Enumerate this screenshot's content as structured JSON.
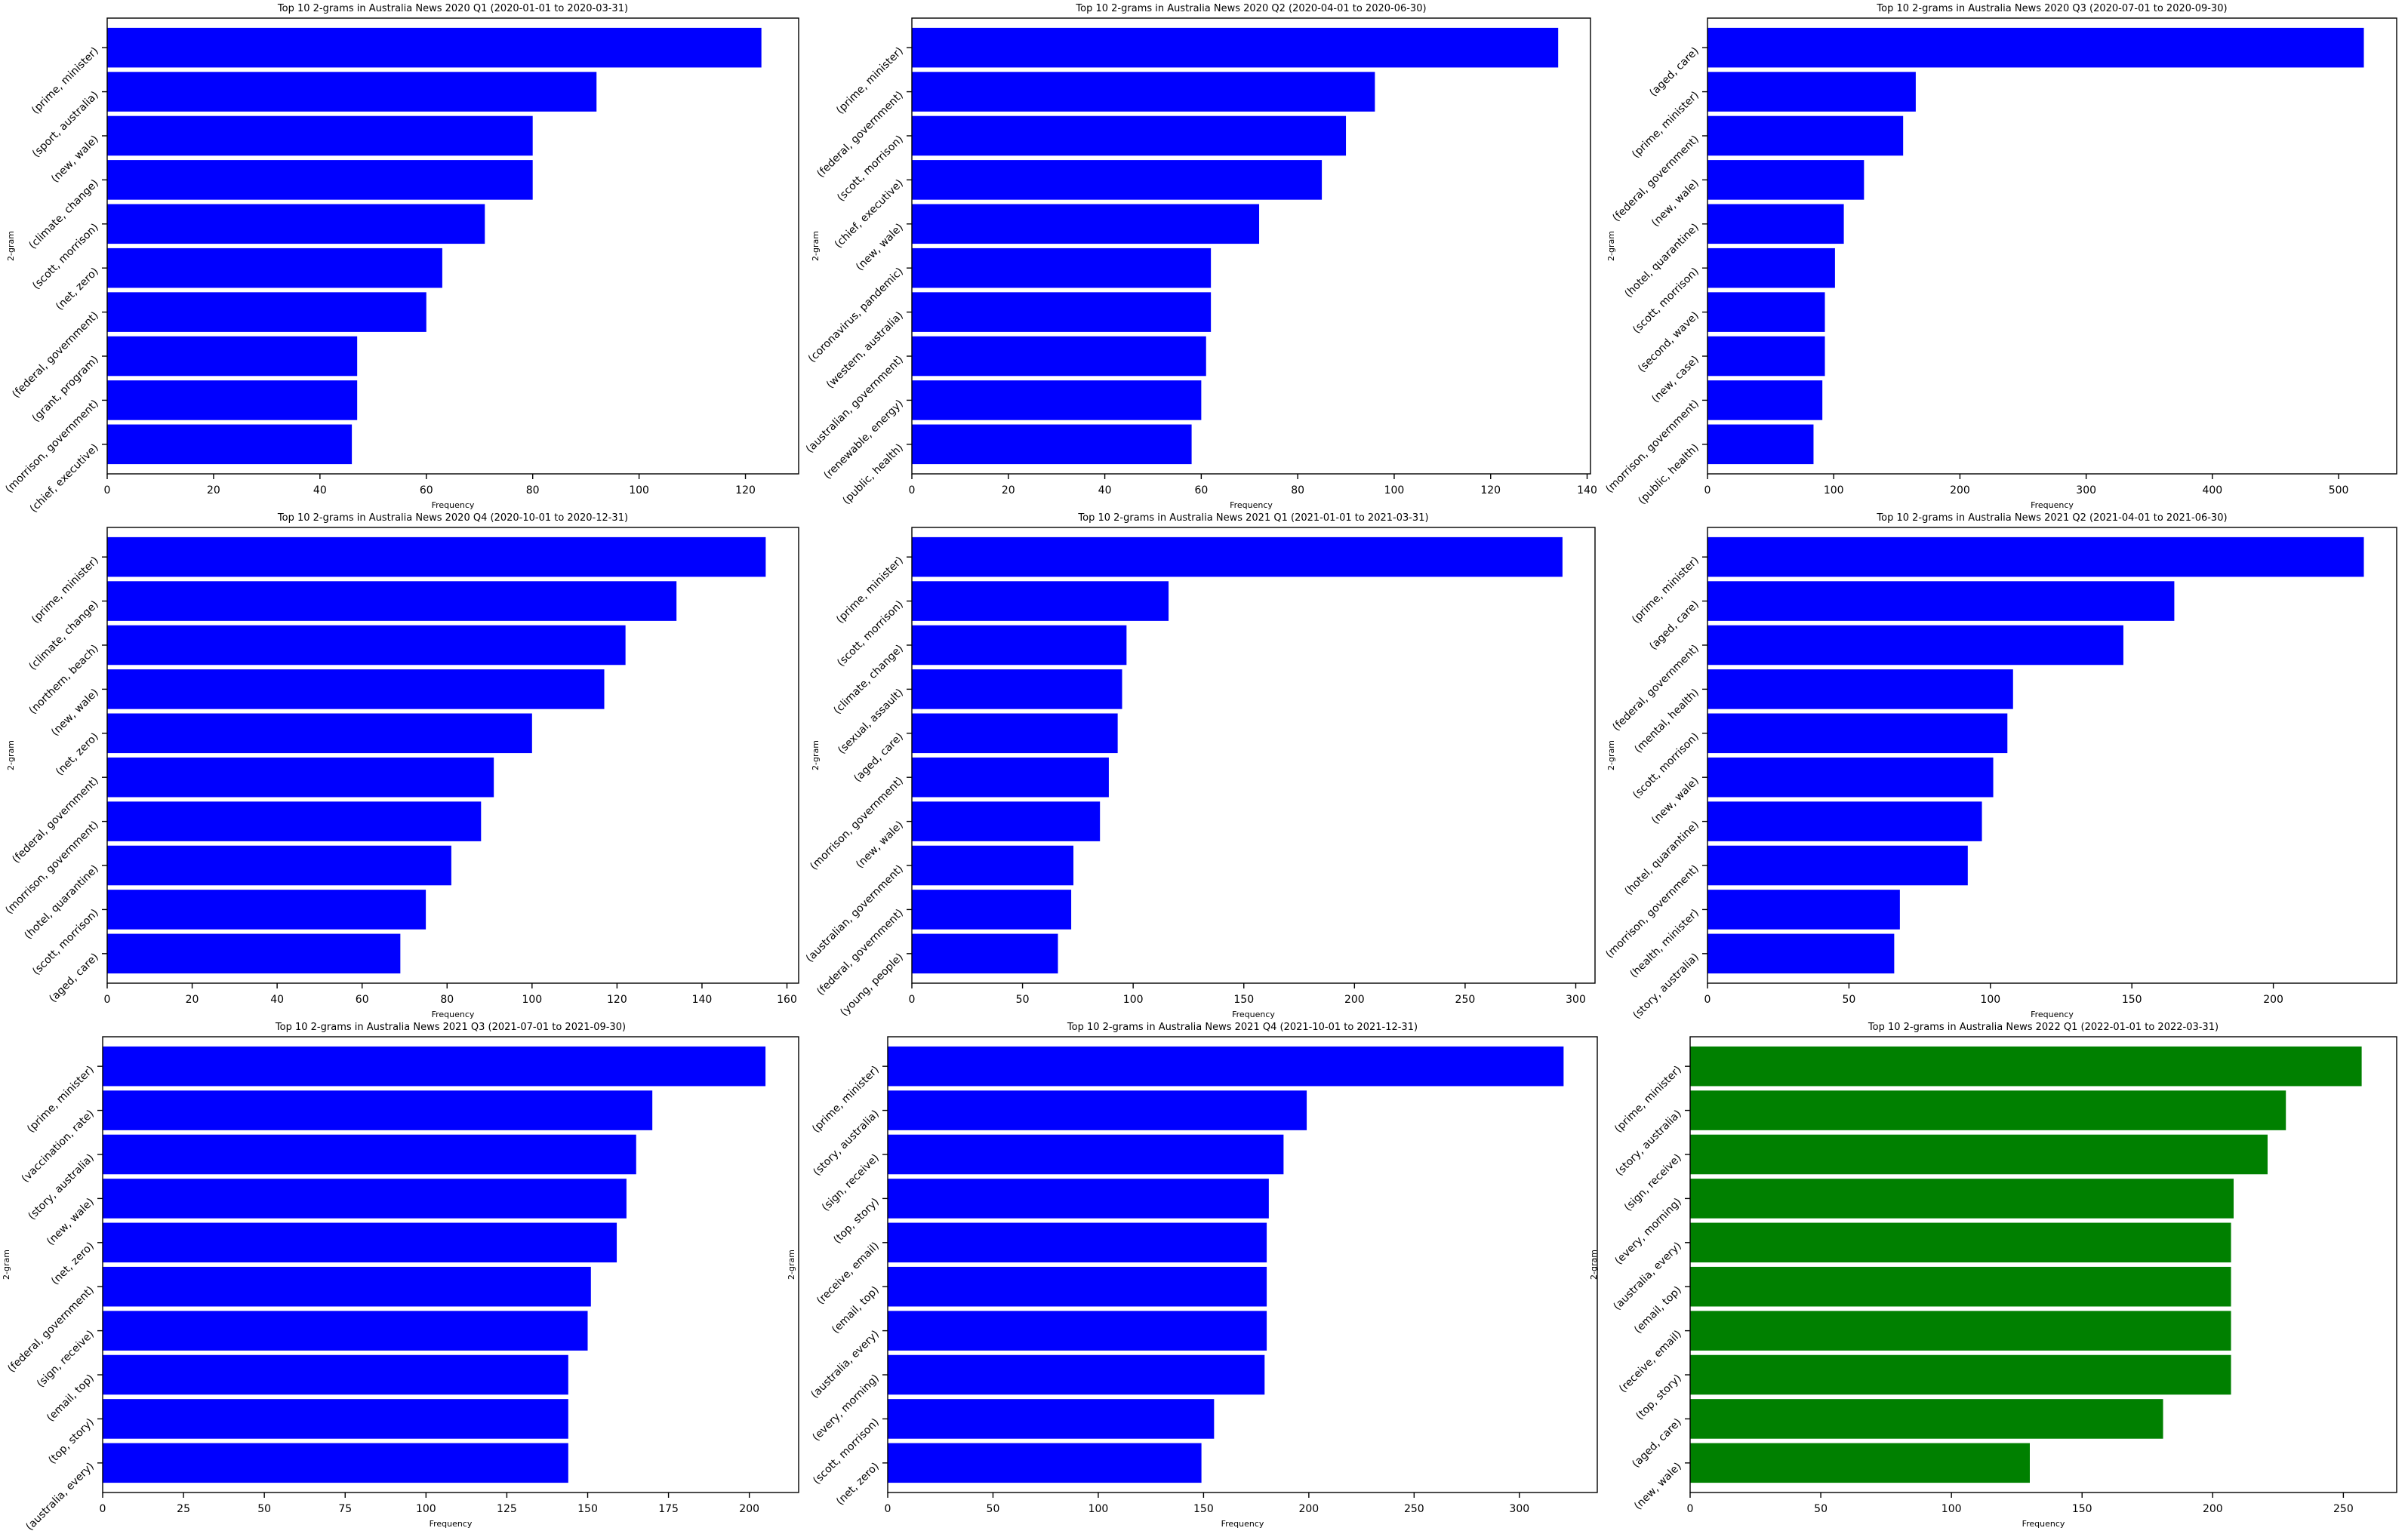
{
  "figure": {
    "bar_color_default": "#0000ff",
    "bar_color_highlight": "#008000"
  },
  "chart_data": [
    {
      "type": "bar",
      "orientation": "horizontal",
      "title": "Top 10 2-grams in Australia News 2020 Q1 (2020-01-01 to 2020-03-31)",
      "xlabel": "Frequency",
      "ylabel": "2-gram",
      "color": "#0000ff",
      "xlim": [
        0,
        130
      ],
      "xticks": [
        0,
        20,
        40,
        60,
        80,
        100,
        120
      ],
      "categories": [
        "(prime, minister)",
        "(sport, australia)",
        "(new, wale)",
        "(climate, change)",
        "(scott, morrison)",
        "(net, zero)",
        "(federal, government)",
        "(grant, program)",
        "(morrison, government)",
        "(chief, executive)"
      ],
      "values": [
        123,
        92,
        80,
        80,
        71,
        63,
        60,
        47,
        47,
        46
      ]
    },
    {
      "type": "bar",
      "orientation": "horizontal",
      "title": "Top 10 2-grams in Australia News 2020 Q2 (2020-04-01 to 2020-06-30)",
      "xlabel": "Frequency",
      "ylabel": "2-gram",
      "color": "#0000ff",
      "xlim": [
        0,
        140.7
      ],
      "xticks": [
        0,
        20,
        40,
        60,
        80,
        100,
        120,
        140
      ],
      "categories": [
        "(prime, minister)",
        "(federal, government)",
        "(scott, morrison)",
        "(chief, executive)",
        "(new, wale)",
        "(coronavirus, pandemic)",
        "(western, australia)",
        "(australian, government)",
        "(renewable, energy)",
        "(public, health)"
      ],
      "values": [
        134,
        96,
        90,
        85,
        72,
        62,
        62,
        61,
        60,
        58
      ]
    },
    {
      "type": "bar",
      "orientation": "horizontal",
      "title": "Top 10 2-grams in Australia News 2020 Q3 (2020-07-01 to 2020-09-30)",
      "xlabel": "Frequency",
      "ylabel": "2-gram",
      "color": "#0000ff",
      "xlim": [
        0,
        546
      ],
      "xticks": [
        0,
        100,
        200,
        300,
        400,
        500
      ],
      "categories": [
        "(aged, care)",
        "(prime, minister)",
        "(federal, government)",
        "(new, wale)",
        "(hotel, quarantine)",
        "(scott, morrison)",
        "(second, wave)",
        "(new, case)",
        "(morrison, government)",
        "(public, health)"
      ],
      "values": [
        520,
        165,
        155,
        124,
        108,
        101,
        93,
        93,
        91,
        84
      ]
    },
    {
      "type": "bar",
      "orientation": "horizontal",
      "title": "Top 10 2-grams in Australia News 2020 Q4 (2020-10-01 to 2020-12-31)",
      "xlabel": "Frequency",
      "ylabel": "2-gram",
      "color": "#0000ff",
      "xlim": [
        0,
        162.75
      ],
      "xticks": [
        0,
        20,
        40,
        60,
        80,
        100,
        120,
        140,
        160
      ],
      "categories": [
        "(prime, minister)",
        "(climate, change)",
        "(northern, beach)",
        "(new, wale)",
        "(net, zero)",
        "(federal, government)",
        "(morrison, government)",
        "(hotel, quarantine)",
        "(scott, morrison)",
        "(aged, care)"
      ],
      "values": [
        155,
        134,
        122,
        117,
        100,
        91,
        88,
        81,
        75,
        69
      ]
    },
    {
      "type": "bar",
      "orientation": "horizontal",
      "title": "Top 10 2-grams in Australia News 2021 Q1 (2021-01-01 to 2021-03-31)",
      "xlabel": "Frequency",
      "ylabel": "2-gram",
      "color": "#0000ff",
      "xlim": [
        0,
        308.7
      ],
      "xticks": [
        0,
        50,
        100,
        150,
        200,
        250,
        300
      ],
      "categories": [
        "(prime, minister)",
        "(scott, morrison)",
        "(climate, change)",
        "(sexual, assault)",
        "(aged, care)",
        "(morrison, government)",
        "(new, wale)",
        "(australian, government)",
        "(federal, government)",
        "(young, people)"
      ],
      "values": [
        294,
        116,
        97,
        95,
        93,
        89,
        85,
        73,
        72,
        66
      ]
    },
    {
      "type": "bar",
      "orientation": "horizontal",
      "title": "Top 10 2-grams in Australia News 2021 Q2 (2021-04-01 to 2021-06-30)",
      "xlabel": "Frequency",
      "ylabel": "2-gram",
      "color": "#0000ff",
      "xlim": [
        0,
        243.6
      ],
      "xticks": [
        0,
        50,
        100,
        150,
        200
      ],
      "categories": [
        "(prime, minister)",
        "(aged, care)",
        "(federal, government)",
        "(mental, health)",
        "(scott, morrison)",
        "(new, wale)",
        "(hotel, quarantine)",
        "(morrison, government)",
        "(health, minister)",
        "(story, australia)"
      ],
      "values": [
        232,
        165,
        147,
        108,
        106,
        101,
        97,
        92,
        68,
        66
      ]
    },
    {
      "type": "bar",
      "orientation": "horizontal",
      "title": "Top 10 2-grams in Australia News 2021 Q3 (2021-07-01 to 2021-09-30)",
      "xlabel": "Frequency",
      "ylabel": "2-gram",
      "color": "#0000ff",
      "xlim": [
        0,
        215.25
      ],
      "xticks": [
        0,
        25,
        50,
        75,
        100,
        125,
        150,
        175,
        200
      ],
      "categories": [
        "(prime, minister)",
        "(vaccination, rate)",
        "(story, australia)",
        "(new, wale)",
        "(net, zero)",
        "(federal, government)",
        "(sign, receive)",
        "(email, top)",
        "(top, story)",
        "(australia, every)"
      ],
      "values": [
        205,
        170,
        165,
        162,
        159,
        151,
        150,
        144,
        144,
        144
      ]
    },
    {
      "type": "bar",
      "orientation": "horizontal",
      "title": "Top 10 2-grams in Australia News 2021 Q4 (2021-10-01 to 2021-12-31)",
      "xlabel": "Frequency",
      "ylabel": "2-gram",
      "color": "#0000ff",
      "xlim": [
        0,
        337
      ],
      "xticks": [
        0,
        50,
        100,
        150,
        200,
        250,
        300
      ],
      "categories": [
        "(prime, minister)",
        "(story, australia)",
        "(sign, receive)",
        "(top, story)",
        "(receive, email)",
        "(email, top)",
        "(australia, every)",
        "(every, morning)",
        "(scott, morrison)",
        "(net, zero)"
      ],
      "values": [
        321,
        199,
        188,
        181,
        180,
        180,
        180,
        179,
        155,
        149
      ]
    },
    {
      "type": "bar",
      "orientation": "horizontal",
      "title": "Top 10 2-grams in Australia News 2022 Q1 (2022-01-01 to 2022-03-31)",
      "xlabel": "Frequency",
      "ylabel": "2-gram",
      "color": "#008000",
      "xlim": [
        0,
        270.4
      ],
      "xticks": [
        0,
        50,
        100,
        150,
        200,
        250
      ],
      "categories": [
        "(prime, minister)",
        "(story, australia)",
        "(sign, receive)",
        "(every, morning)",
        "(australia, every)",
        "(email, top)",
        "(receive, email)",
        "(top, story)",
        "(aged, care)",
        "(new, wale)"
      ],
      "values": [
        257,
        228,
        221,
        208,
        207,
        207,
        207,
        207,
        181,
        130
      ]
    }
  ]
}
